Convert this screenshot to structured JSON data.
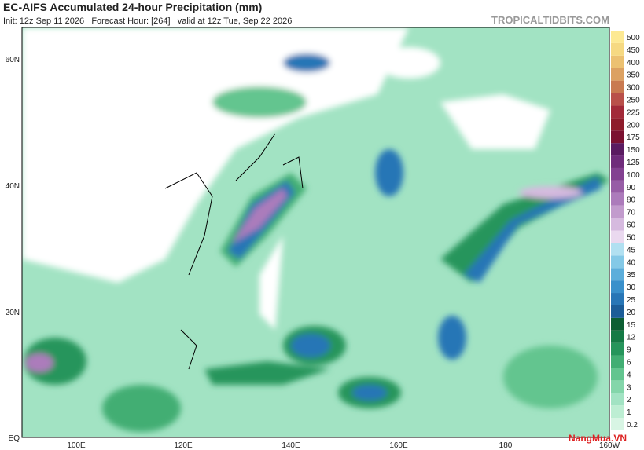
{
  "header": {
    "title": "EC-AIFS Accumulated 24-hour Precipitation (mm)",
    "subtitle": "Init: 12z Sep 11 2026   Forecast Hour: [264]   valid at 12z Tue, Sep 22 2026",
    "site": "TROPICALTIDBITS.COM"
  },
  "latitude_labels": [
    "60N",
    "40N",
    "20N",
    "EQ"
  ],
  "longitude_labels": [
    "100E",
    "120E",
    "140E",
    "160E",
    "180",
    "160W"
  ],
  "colorbar": {
    "labels": [
      "0.2",
      "1",
      "2",
      "3",
      "4",
      "6",
      "9",
      "12",
      "15",
      "20",
      "25",
      "30",
      "35",
      "40",
      "45",
      "50",
      "60",
      "70",
      "80",
      "90",
      "100",
      "125",
      "150",
      "175",
      "200",
      "225",
      "250",
      "300",
      "350",
      "400",
      "450",
      "500"
    ],
    "colors": [
      "#d8f5e4",
      "#bdeed3",
      "#a2e3c3",
      "#84d6aa",
      "#63c58f",
      "#42ae73",
      "#26955b",
      "#157a45",
      "#0c5e33",
      "#1c5d98",
      "#2876b6",
      "#3a90cb",
      "#5caedb",
      "#84c9e7",
      "#b1e0f1",
      "#ead9ef",
      "#d6badf",
      "#c29bcd",
      "#ac7bbb",
      "#975da6",
      "#834191",
      "#6f2c7b",
      "#5a1b61",
      "#7b1131",
      "#8e1c2b",
      "#a22a39",
      "#b9504a",
      "#c97a51",
      "#dca161",
      "#ecc171",
      "#f6d982",
      "#fde993"
    ]
  },
  "watermark": "NangMua.VN"
}
